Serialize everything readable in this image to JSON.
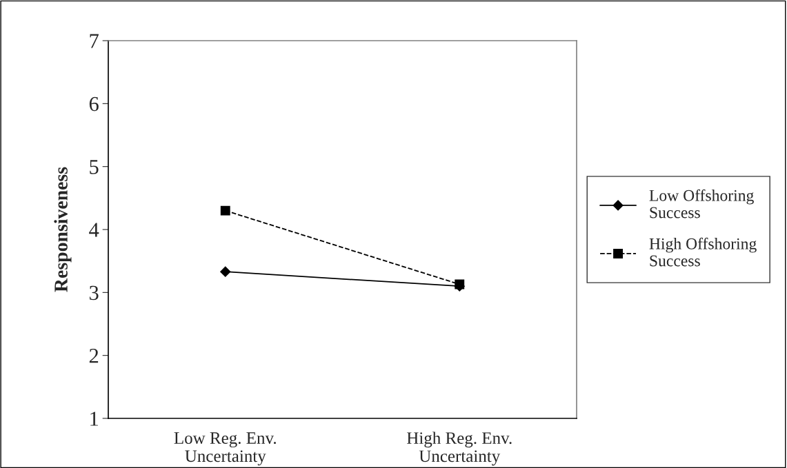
{
  "chart_data": {
    "type": "line",
    "ylabel": "Responsiveness",
    "categories": [
      "Low Reg. Env.\nUncertainty",
      "High Reg. Env.\nUncertainty"
    ],
    "series": [
      {
        "name": "Low Offshoring\nSuccess",
        "color": "#000000",
        "values": [
          3.33,
          3.1
        ],
        "marker": "diamond",
        "line_style": "solid"
      },
      {
        "name": "High Offshoring\nSuccess",
        "color": "#000000",
        "values": [
          4.3,
          3.13
        ],
        "marker": "square",
        "line_style": "dashed"
      }
    ],
    "ylim": [
      1,
      7
    ],
    "yticks": [
      1,
      2,
      3,
      4,
      5,
      6,
      7
    ],
    "grid": false,
    "legend": "right"
  }
}
